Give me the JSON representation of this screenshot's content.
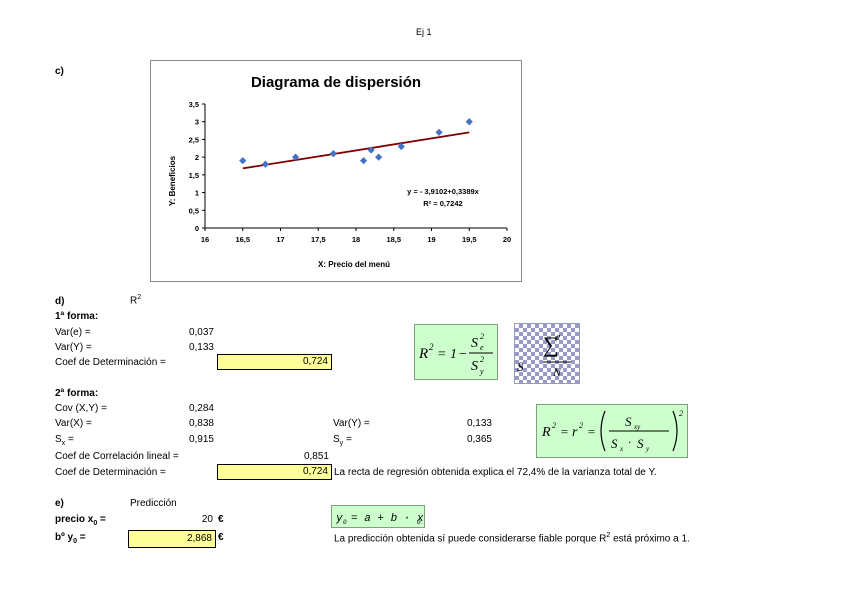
{
  "page_title": "Ej 1",
  "section_c": {
    "label": "c)"
  },
  "chart_data": {
    "type": "scatter",
    "title": "Diagrama de dispersión",
    "xlabel": "X: Precio del menú",
    "ylabel": "Y: Beneficios",
    "xlim": [
      16,
      20
    ],
    "ylim": [
      0,
      3.5
    ],
    "xticks": [
      "16",
      "16,5",
      "17",
      "17,5",
      "18",
      "18,5",
      "19",
      "19,5",
      "20"
    ],
    "yticks": [
      "0",
      "0,5",
      "1",
      "1,5",
      "2",
      "2,5",
      "3",
      "3,5"
    ],
    "points": [
      {
        "x": 16.5,
        "y": 1.9
      },
      {
        "x": 16.8,
        "y": 1.8
      },
      {
        "x": 17.2,
        "y": 2.0
      },
      {
        "x": 17.7,
        "y": 2.1
      },
      {
        "x": 18.1,
        "y": 1.9
      },
      {
        "x": 18.2,
        "y": 2.2
      },
      {
        "x": 18.3,
        "y": 2.0
      },
      {
        "x": 18.6,
        "y": 2.3
      },
      {
        "x": 19.1,
        "y": 2.7
      },
      {
        "x": 19.5,
        "y": 3.0
      }
    ],
    "trendline": {
      "intercept": -3.9102,
      "slope": 0.3389,
      "x_range": [
        16.5,
        19.5
      ]
    },
    "equation_label": "y = - 3,9102+0,3389x",
    "r2_label": "R² = 0,7242",
    "grid": false,
    "colors": {
      "points": "#4472c4",
      "trendline": "#7f0000"
    }
  },
  "section_d": {
    "label": "d)",
    "r2_heading": "R",
    "r2_heading_sup": "2",
    "forma1": {
      "title": "1ª forma:",
      "var_e_label": "Var(e) =",
      "var_e_value": "0,037",
      "var_y_label": "Var(Y) =",
      "var_y_value": "0,133",
      "coef_det_label": "Coef de Determinación =",
      "coef_det_value": "0,724"
    },
    "forma2": {
      "title": "2ª forma:",
      "cov_label": "Cov (X,Y) =",
      "cov_value": "0,284",
      "var_x_label": "Var(X) =",
      "var_x_value": "0,838",
      "sx_label": "S",
      "sx_sub": "x",
      "sx_eq": " =",
      "sx_value": "0,915",
      "var_y_label": "Var(Y) =",
      "var_y_value": "0,133",
      "sy_label": "S",
      "sy_sub": "y",
      "sy_eq": " =",
      "sy_value": "0,365",
      "corr_label": "Coef de Correlación lineal =",
      "corr_value": "0,851",
      "coef_det_label": "Coef de Determinación =",
      "coef_det_value": "0,724",
      "interpretation": "La recta de regresión obtenida explica el 72,4% de la varianza total de Y."
    }
  },
  "section_e": {
    "label": "e)",
    "prediccion_label": "Predicción",
    "precio_label": "precio x",
    "precio_sub": "0",
    "precio_eq": " =",
    "precio_value": "20",
    "currency": "€",
    "bf_label": "bº y",
    "bf_sub": "0",
    "bf_eq": " =",
    "bf_value": "2,868",
    "conclusion_pre": "La predicción obtenida sí puede considerarse fiable porque R",
    "conclusion_sup": "2",
    "conclusion_post": " está próximo a 1."
  }
}
